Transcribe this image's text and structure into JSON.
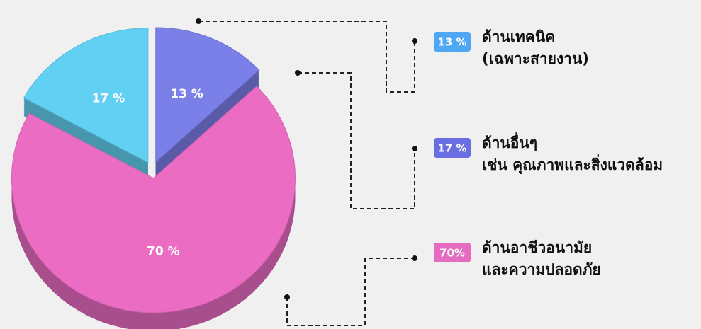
{
  "chart_data": {
    "type": "pie",
    "values": [
      13,
      70,
      17
    ],
    "value_labels": [
      "13 %",
      "70 %",
      "17 %"
    ],
    "colors": [
      "#7b7fe8",
      "#ea6cc3",
      "#62d0f2"
    ],
    "legend": [
      {
        "value": 13,
        "value_label": "13 %",
        "color": "#4fa6f2",
        "lines": [
          "ด้านเทคนิค",
          "(เฉพาะสายงาน)"
        ]
      },
      {
        "value": 17,
        "value_label": "17 %",
        "color": "#6a6ee0",
        "lines": [
          "ด้านอื่นๆ",
          "เช่น คุณภาพและสิ่งแวดล้อม"
        ]
      },
      {
        "value": 70,
        "value_label": "70%",
        "color": "#e46bc0",
        "lines": [
          "ด้านอาชีวอนามัย",
          "และความปลอดภัย"
        ]
      }
    ]
  }
}
